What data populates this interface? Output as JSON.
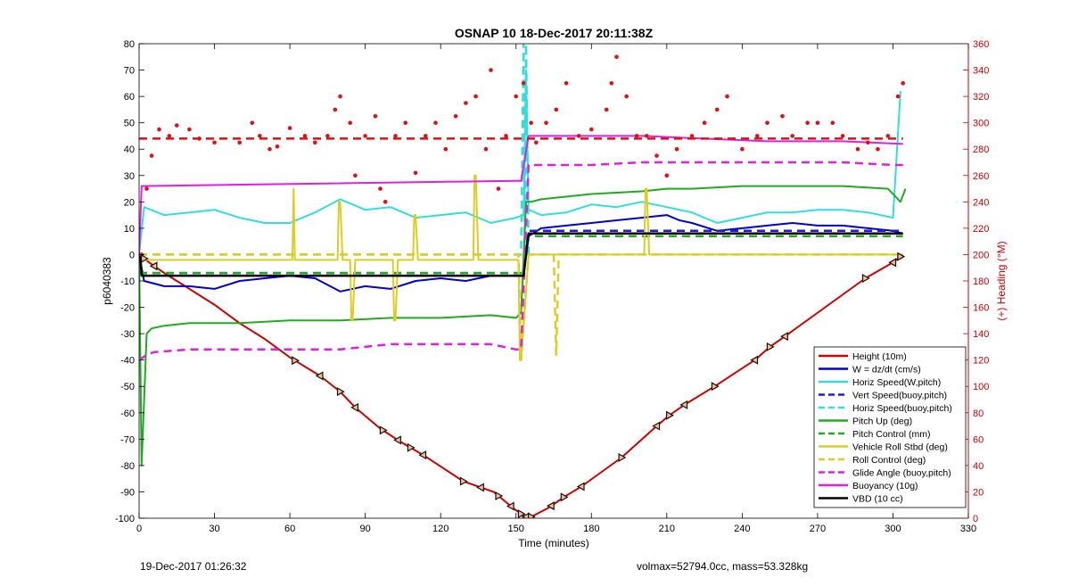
{
  "chart_data": {
    "type": "line",
    "title": "OSNAP 10 18-Dec-2017 20:11:38Z",
    "xlabel": "Time (minutes)",
    "ylabel_left": "p6040383",
    "ylabel_right": "(+) Heading (°M)",
    "xlim": [
      0,
      330
    ],
    "ylim_left": [
      -100,
      80
    ],
    "ylim_right": [
      0,
      360
    ],
    "x_ticks": [
      0,
      30,
      60,
      90,
      120,
      150,
      180,
      210,
      240,
      270,
      300,
      330
    ],
    "y_ticks_left": [
      80,
      70,
      60,
      50,
      40,
      30,
      20,
      10,
      0,
      -10,
      -20,
      -30,
      -40,
      -50,
      -60,
      -70,
      -80,
      -90,
      -100
    ],
    "y_ticks_right": [
      360,
      340,
      320,
      300,
      280,
      260,
      240,
      220,
      200,
      180,
      160,
      140,
      120,
      100,
      80,
      60,
      40,
      20,
      0
    ],
    "grid": false,
    "legend_position": "bottom-right",
    "series": [
      {
        "name": "Height (10m)",
        "color": "#cc0000",
        "style": "solid",
        "width": 2,
        "x": [
          0,
          4,
          10,
          20,
          30,
          40,
          50,
          60,
          72,
          80,
          86,
          96,
          104,
          113,
          129,
          141,
          150,
          153,
          155,
          157,
          163,
          169,
          176,
          192,
          206,
          211,
          217,
          229,
          245,
          251,
          257,
          289,
          300,
          304
        ],
        "y": [
          0,
          -3,
          -7,
          -13,
          -19,
          -26,
          -32,
          -39,
          -46,
          -52,
          -58,
          -66,
          -71,
          -76,
          -86,
          -90,
          -97,
          -99,
          -100,
          -99,
          -96,
          -92,
          -88,
          -77,
          -65,
          -61,
          -57,
          -50,
          -40,
          -35,
          -31,
          -9,
          -3,
          0
        ]
      },
      {
        "name": "W = dz/dt (cm/s)",
        "color": "#0000cc",
        "style": "solid",
        "width": 2,
        "x": [
          0,
          2,
          10,
          20,
          30,
          40,
          50,
          60,
          70,
          80,
          90,
          100,
          110,
          120,
          130,
          140,
          150,
          153,
          155,
          160,
          170,
          180,
          190,
          200,
          210,
          215,
          220,
          230,
          240,
          250,
          260,
          270,
          280,
          290,
          300,
          304
        ],
        "y": [
          0,
          -10,
          -12,
          -12,
          -13,
          -10,
          -9,
          -8,
          -9,
          -14,
          -12,
          -13,
          -10,
          -9,
          -10,
          -8,
          -8,
          -8,
          7,
          10,
          11,
          12,
          13,
          14,
          15,
          13,
          12,
          9,
          10,
          11,
          12,
          11,
          11,
          10,
          9,
          8
        ]
      },
      {
        "name": "Horiz Speed(W,pitch)",
        "color": "#33dddd",
        "style": "solid",
        "width": 2,
        "x": [
          0,
          2,
          10,
          20,
          30,
          40,
          50,
          60,
          70,
          80,
          90,
          100,
          110,
          120,
          130,
          140,
          150,
          153,
          154,
          155,
          160,
          170,
          180,
          190,
          200,
          210,
          220,
          230,
          240,
          250,
          260,
          270,
          280,
          290,
          300,
          303
        ],
        "y": [
          0,
          18,
          15,
          16,
          17,
          14,
          12,
          12,
          16,
          21,
          17,
          18,
          14,
          15,
          16,
          12,
          14,
          15,
          70,
          17,
          15,
          16,
          19,
          18,
          20,
          18,
          16,
          12,
          14,
          16,
          16,
          17,
          17,
          16,
          14,
          62
        ]
      },
      {
        "name": "Vert Speed(buoy,pitch)",
        "color": "#1a1aee",
        "style": "dashed",
        "width": 2.5,
        "x": [
          0,
          153,
          155,
          304
        ],
        "y": [
          -7,
          -7,
          9,
          9
        ]
      },
      {
        "name": "Horiz Speed(buoy,pitch)",
        "color": "#33dddd",
        "style": "dashed",
        "width": 2.5,
        "x": [
          0,
          152,
          153,
          153.5,
          154,
          155,
          156
        ],
        "y": [
          0,
          0,
          80,
          0,
          80,
          0,
          0
        ]
      },
      {
        "name": "Pitch Up (deg)",
        "color": "#22aa22",
        "style": "solid",
        "width": 2,
        "x": [
          0,
          1,
          3,
          5,
          10,
          20,
          30,
          40,
          60,
          80,
          100,
          120,
          140,
          150,
          152,
          154,
          156,
          160,
          180,
          200,
          210,
          220,
          240,
          260,
          280,
          298,
          303,
          305
        ],
        "y": [
          0,
          -80,
          -30,
          -28,
          -27,
          -26,
          -26,
          -26,
          -25,
          -25,
          -24,
          -24,
          -23,
          -24,
          -22,
          20,
          20,
          21,
          23,
          24,
          25,
          25,
          26,
          26,
          26,
          25,
          20,
          25
        ]
      },
      {
        "name": "Pitch Control (mm)",
        "color": "#22aa22",
        "style": "dashed",
        "width": 2.5,
        "x": [
          0,
          153,
          155,
          304
        ],
        "y": [
          -7,
          -7,
          7,
          7
        ]
      },
      {
        "name": "Vehicle Roll Stbd (deg)",
        "color": "#ddcc22",
        "style": "solid",
        "width": 2,
        "x": [
          0,
          60,
          61,
          61.5,
          62,
          63,
          78,
          79,
          79.5,
          80,
          81,
          83,
          84,
          84.5,
          85,
          86,
          100,
          101,
          101.5,
          102,
          103,
          108,
          109,
          109.5,
          110,
          111,
          132,
          133,
          133.5,
          134,
          135,
          150,
          151,
          151.5,
          152,
          155,
          200,
          201,
          201.5,
          202,
          203,
          270,
          304
        ],
        "y": [
          -2,
          -2,
          -2,
          25,
          -2,
          -2,
          -2,
          -2,
          20,
          20,
          -2,
          -2,
          -2,
          -25,
          -25,
          -2,
          -2,
          -2,
          -25,
          -25,
          -2,
          -2,
          -2,
          15,
          15,
          -2,
          -2,
          -2,
          30,
          30,
          -2,
          -2,
          -2,
          -40,
          -40,
          0,
          0,
          0,
          25,
          25,
          0,
          0,
          0
        ]
      },
      {
        "name": "Roll Control (deg)",
        "color": "#ddcc22",
        "style": "dashed",
        "width": 2.5,
        "x": [
          0,
          60,
          61,
          62,
          150,
          151,
          152,
          155,
          165,
          166,
          167,
          200,
          215,
          216,
          217,
          304
        ],
        "y": [
          0,
          0,
          0,
          0,
          0,
          0,
          -40,
          0,
          0,
          -38,
          0,
          0,
          0,
          0,
          0,
          0
        ]
      },
      {
        "name": "Glide Angle (buoy,pitch)",
        "color": "#dd22dd",
        "style": "dashed",
        "width": 2.5,
        "x": [
          0,
          3,
          6,
          20,
          40,
          60,
          80,
          100,
          120,
          140,
          150,
          152,
          155,
          160,
          180,
          200,
          220,
          240,
          260,
          280,
          300,
          304
        ],
        "y": [
          -40,
          -38,
          -37,
          -36,
          -36,
          -36,
          -36,
          -34,
          -34,
          -34,
          -36,
          -36,
          34,
          34,
          34,
          35,
          35,
          35,
          35,
          35,
          34,
          34
        ]
      },
      {
        "name": "Buoyancy (10g)",
        "color": "#dd22dd",
        "style": "solid",
        "width": 2,
        "x": [
          0,
          1,
          150,
          152,
          155,
          170,
          200,
          250,
          280,
          303,
          304
        ],
        "y": [
          0,
          26,
          28,
          28,
          45,
          45,
          45,
          43,
          43,
          42,
          42
        ]
      },
      {
        "name": "VBD (10 cc)",
        "color": "#000000",
        "style": "solid",
        "width": 2.5,
        "x": [
          0,
          0.5,
          1,
          2,
          3,
          150,
          153,
          155,
          157,
          304
        ],
        "y": [
          0,
          0,
          -8,
          -8,
          -8,
          -8,
          -8,
          8,
          8,
          8
        ]
      },
      {
        "name": "Heading",
        "color": "#dd1111",
        "style": "dots",
        "axis": "right",
        "x": [
          1,
          3,
          5,
          8,
          12,
          15,
          20,
          24,
          30,
          40,
          45,
          48,
          52,
          55,
          60,
          66,
          70,
          75,
          78,
          80,
          84,
          86,
          90,
          94,
          96,
          98,
          102,
          106,
          110,
          114,
          118,
          122,
          126,
          130,
          134,
          138,
          140,
          143,
          146,
          150,
          153,
          156,
          158,
          162,
          166,
          170,
          175,
          180,
          186,
          188,
          190,
          194,
          198,
          202,
          206,
          210,
          214,
          220,
          225,
          230,
          234,
          240,
          246,
          250,
          256,
          260,
          266,
          270,
          276,
          280,
          286,
          290,
          294,
          298,
          302,
          304
        ],
        "y": [
          200,
          250,
          275,
          295,
          290,
          298,
          295,
          288,
          285,
          285,
          300,
          290,
          280,
          282,
          296,
          290,
          285,
          290,
          310,
          320,
          300,
          260,
          290,
          305,
          250,
          240,
          290,
          300,
          262,
          290,
          300,
          280,
          305,
          315,
          320,
          280,
          340,
          250,
          290,
          320,
          330,
          300,
          285,
          300,
          310,
          330,
          290,
          295,
          310,
          330,
          350,
          320,
          290,
          290,
          275,
          260,
          280,
          290,
          300,
          310,
          320,
          280,
          290,
          300,
          305,
          290,
          300,
          300,
          300,
          290,
          280,
          285,
          280,
          290,
          320,
          330
        ]
      },
      {
        "name": "Heading target",
        "color": "#dd1111",
        "style": "dashed",
        "width": 2.5,
        "axis": "right",
        "x": [
          0,
          304
        ],
        "y": [
          288,
          288
        ]
      }
    ],
    "legend_entries": [
      "Height (10m)",
      "W = dz/dt (cm/s)",
      "Horiz Speed(W,pitch)",
      "Vert Speed(buoy,pitch)",
      "Horiz Speed(buoy,pitch)",
      "Pitch Up (deg)",
      "Pitch Control (mm)",
      "Vehicle Roll Stbd (deg)",
      "Roll Control (deg)",
      "Glide Angle (buoy,pitch)",
      "Buoyancy (10g)",
      "VBD (10 cc)"
    ],
    "markers": {
      "series": "Height (10m)",
      "x": [
        2,
        6,
        62,
        72,
        80,
        86,
        97,
        103,
        108,
        113,
        129,
        136,
        143,
        148,
        152,
        154,
        156,
        164,
        169,
        176,
        192,
        206,
        211,
        217,
        229,
        245,
        251,
        257,
        289,
        300,
        303
      ]
    }
  },
  "footer": {
    "left": "19-Dec-2017 01:26:32",
    "right": "volmax=52794.0cc, mass=53.328kg"
  },
  "colors": {
    "axis": "#000000",
    "right_axis": "#cc0000"
  }
}
